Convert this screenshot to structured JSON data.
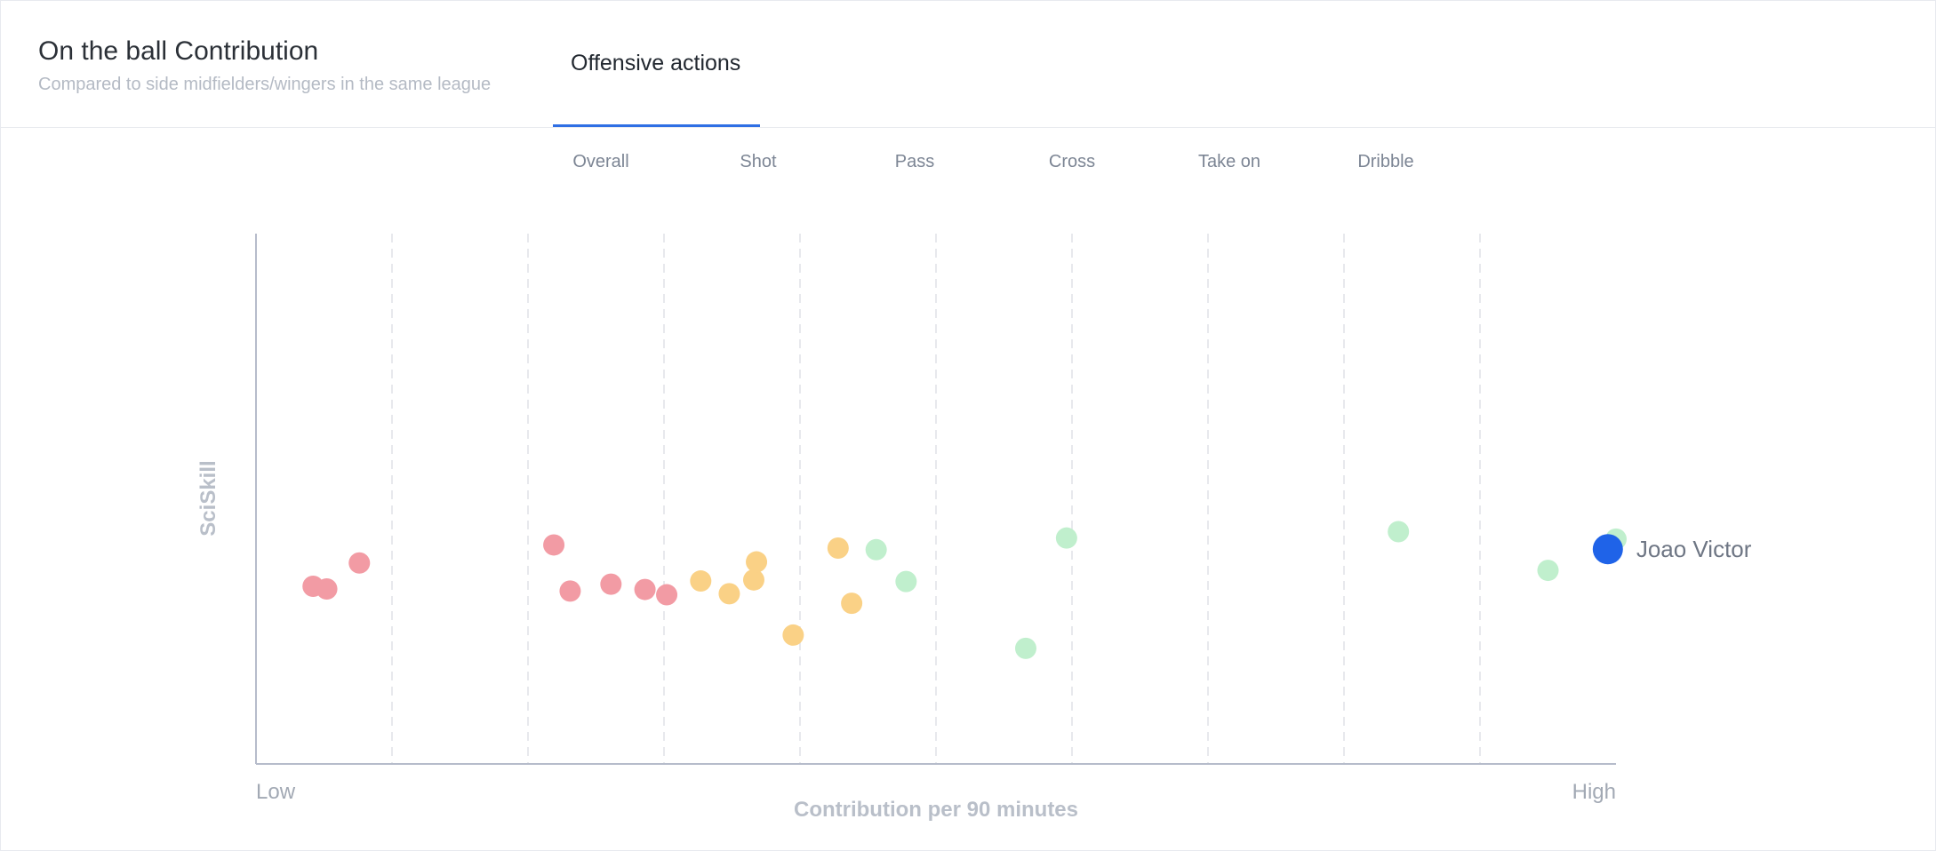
{
  "header": {
    "title": "On the ball Contribution",
    "subtitle": "Compared to side midfielders/wingers in the same league",
    "active_tab": "Offensive actions"
  },
  "subtabs": [
    {
      "label": "Overall",
      "active": true
    },
    {
      "label": "Shot",
      "active": false
    },
    {
      "label": "Pass",
      "active": false
    },
    {
      "label": "Cross",
      "active": false
    },
    {
      "label": "Take on",
      "active": false
    },
    {
      "label": "Dribble",
      "active": false
    }
  ],
  "colors": {
    "low": "#f29ba4",
    "mid": "#fad186",
    "high": "#c0efcd",
    "highlight": "#1f63e8",
    "accent": "#2f6fe4",
    "axis": "#b6bccb",
    "grid": "#dfe2e7"
  },
  "chart_data": {
    "type": "scatter",
    "xlabel": "Contribution per 90 minutes",
    "ylabel": "SciSkill",
    "x_tick_labels": {
      "min": "Low",
      "max": "High"
    },
    "xlim": [
      0,
      100
    ],
    "ylim": [
      0,
      100
    ],
    "grid": "vertical dashed, 10 intervals",
    "series": [
      {
        "group": "low",
        "points": [
          {
            "x": 4.2,
            "y": 33.5
          },
          {
            "x": 5.2,
            "y": 33.0
          },
          {
            "x": 7.6,
            "y": 37.9
          },
          {
            "x": 21.9,
            "y": 41.3
          },
          {
            "x": 23.1,
            "y": 32.6
          },
          {
            "x": 26.1,
            "y": 33.9
          },
          {
            "x": 28.6,
            "y": 32.9
          },
          {
            "x": 30.2,
            "y": 31.9
          }
        ]
      },
      {
        "group": "mid",
        "points": [
          {
            "x": 32.7,
            "y": 34.5
          },
          {
            "x": 34.8,
            "y": 32.1
          },
          {
            "x": 36.6,
            "y": 34.7
          },
          {
            "x": 36.8,
            "y": 38.1
          },
          {
            "x": 39.5,
            "y": 24.3
          },
          {
            "x": 42.8,
            "y": 40.7
          },
          {
            "x": 43.8,
            "y": 30.3
          }
        ]
      },
      {
        "group": "high",
        "points": [
          {
            "x": 45.6,
            "y": 40.4
          },
          {
            "x": 47.8,
            "y": 34.4
          },
          {
            "x": 56.6,
            "y": 21.8
          },
          {
            "x": 59.6,
            "y": 42.6
          },
          {
            "x": 84.0,
            "y": 43.8
          },
          {
            "x": 95.0,
            "y": 36.5
          },
          {
            "x": 100.0,
            "y": 42.4
          }
        ]
      }
    ],
    "highlight": {
      "label": "Joao Victor",
      "x": 99.4,
      "y": 40.5
    }
  }
}
